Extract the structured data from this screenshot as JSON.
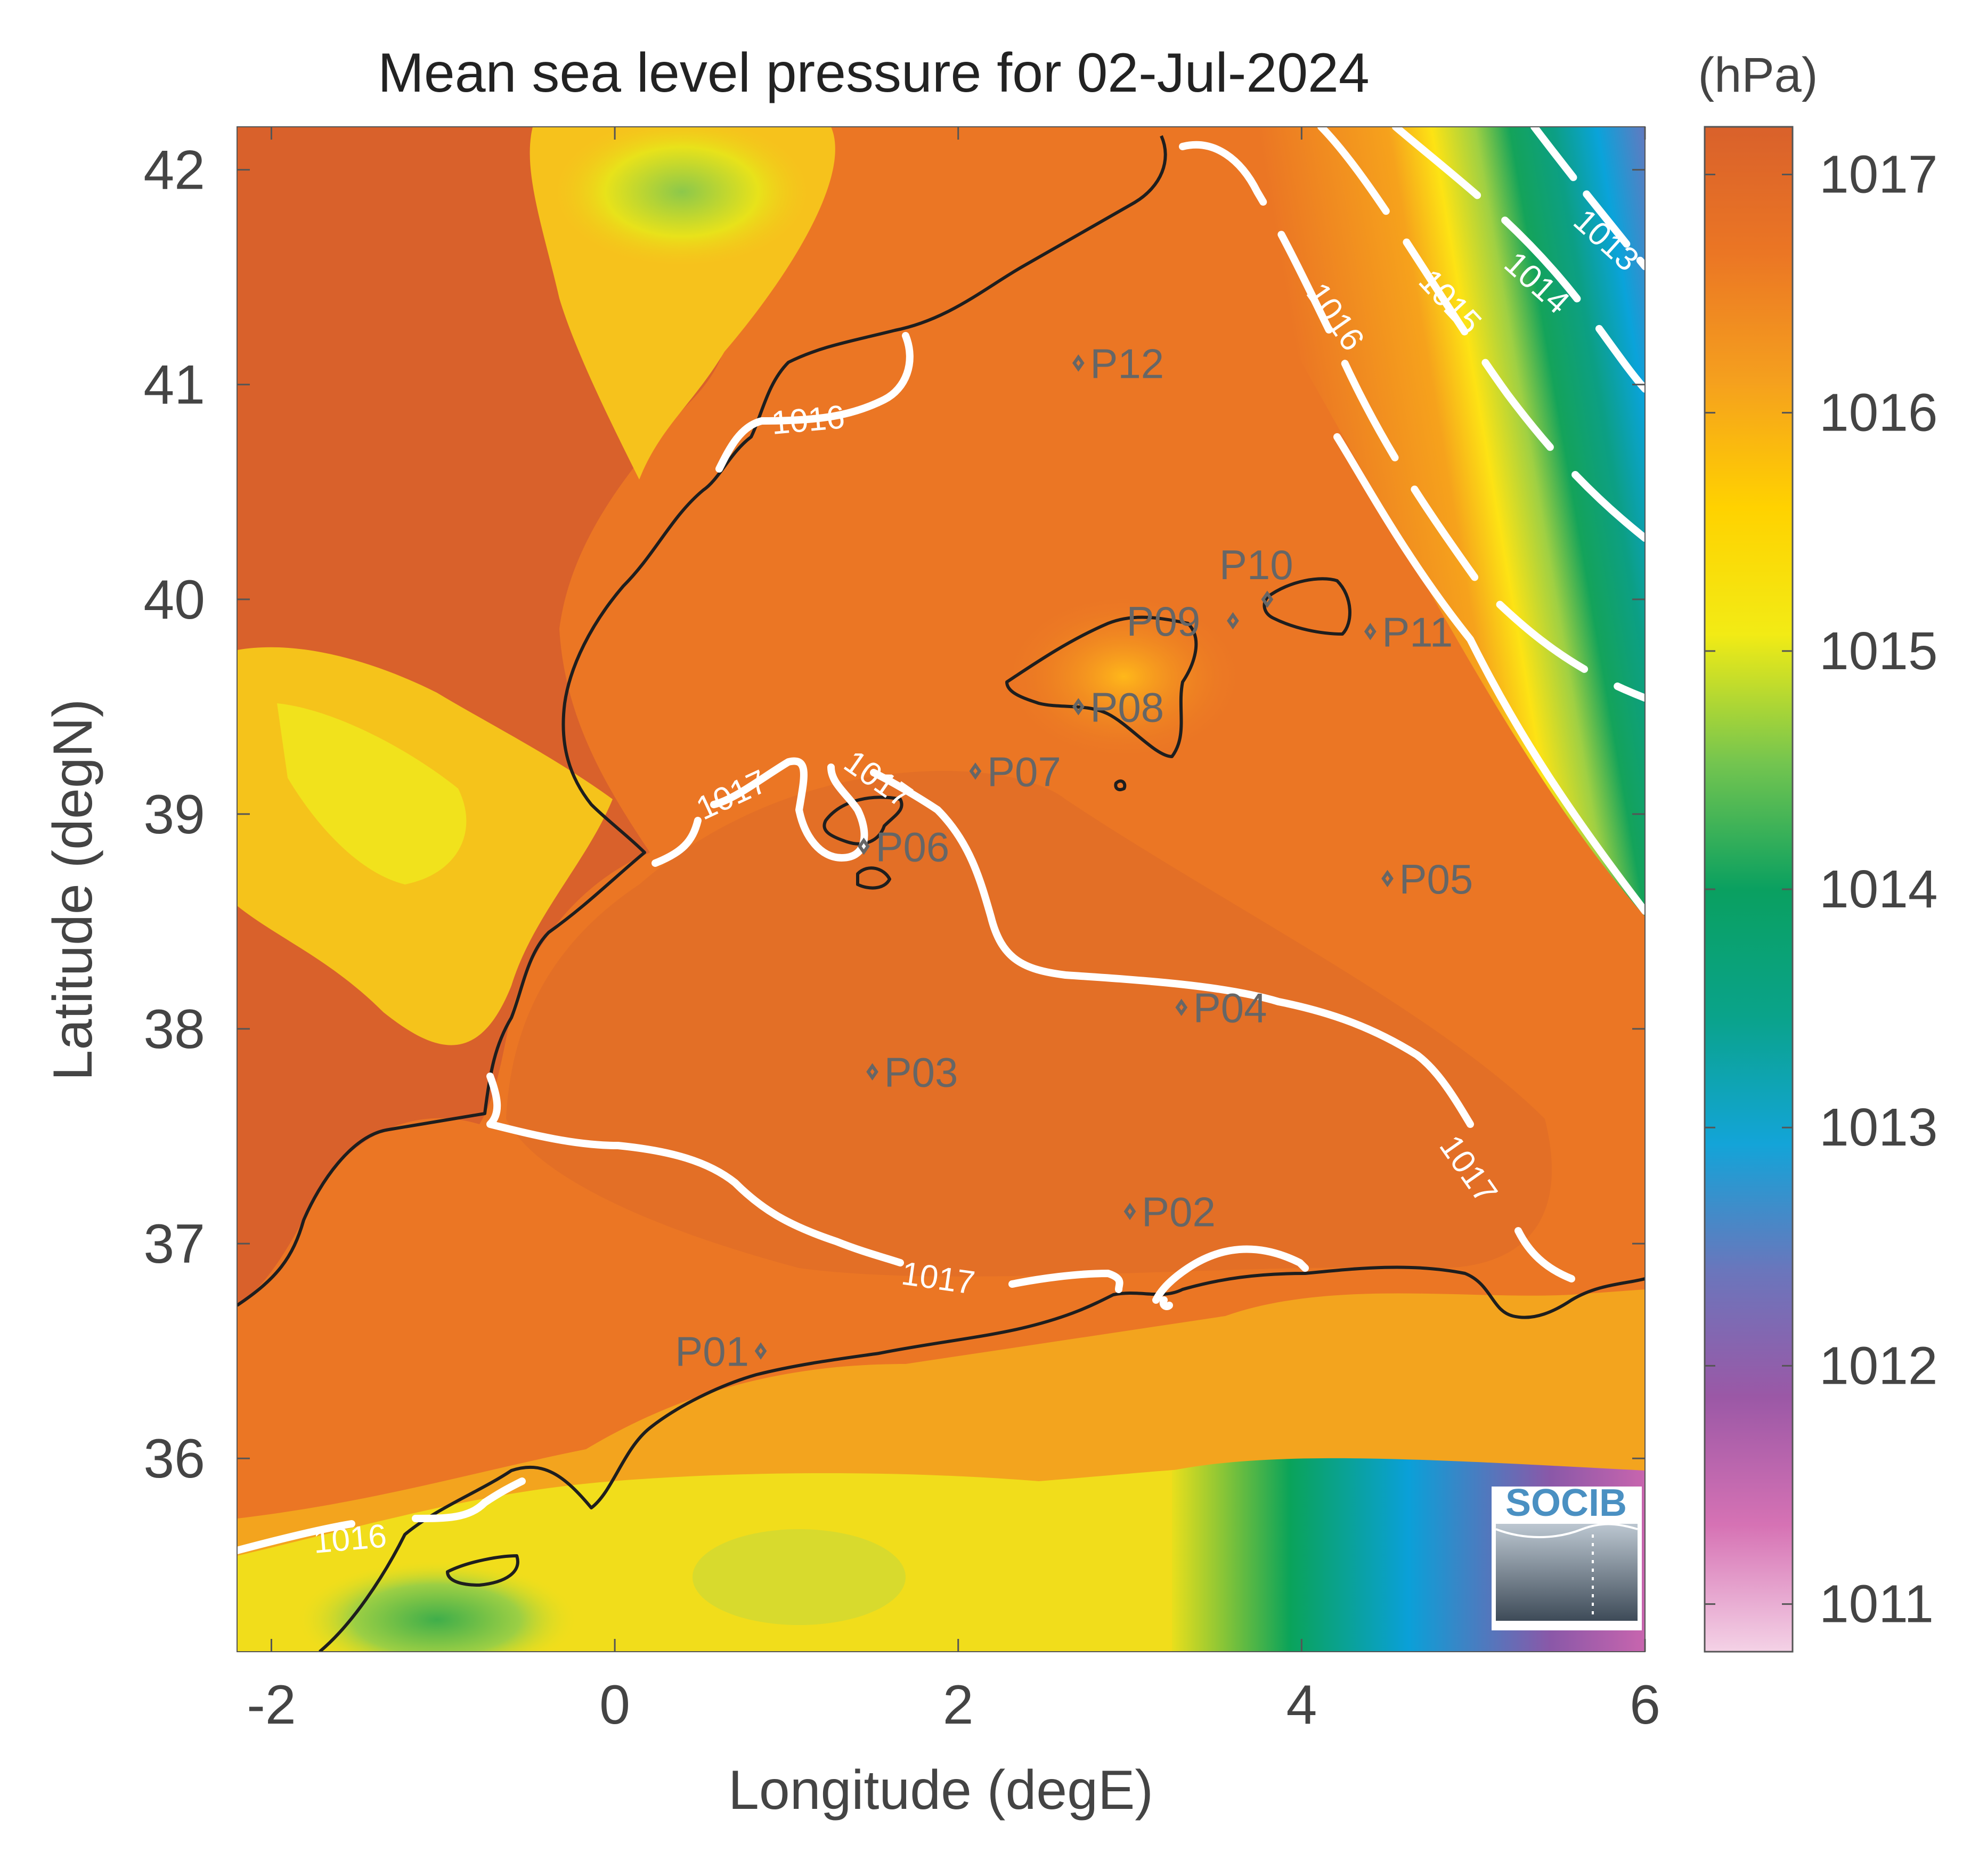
{
  "title": "Mean sea level pressure for 02-Jul-2024",
  "colorbar": {
    "unit": "(hPa)",
    "ticks": [
      "1017",
      "1016",
      "1015",
      "1014",
      "1013",
      "1012",
      "1011"
    ],
    "range": [
      1010.8,
      1017.2
    ],
    "colormap_hex": [
      "#f4d2e6",
      "#d672b4",
      "#9b58a6",
      "#6a76bc",
      "#13a4d8",
      "#0aa38a",
      "#0aa060",
      "#74c54f",
      "#f2eb15",
      "#ffd200",
      "#f5a01e",
      "#eb7624",
      "#d9612b"
    ]
  },
  "chart_data": {
    "type": "heatmap",
    "variable": "Mean sea level pressure",
    "date": "02-Jul-2024",
    "units": "hPa",
    "xlabel": "Longitude (degE)",
    "ylabel": "Latitude (degN)",
    "xlim": [
      -2.2,
      6
    ],
    "ylim": [
      35.1,
      42.2
    ],
    "xticks": [
      -2,
      0,
      2,
      4,
      6
    ],
    "yticks": [
      36,
      37,
      38,
      39,
      40,
      41,
      42
    ],
    "contour_labels": [
      "1013",
      "1014",
      "1015",
      "1016",
      "1017"
    ],
    "stations": [
      {
        "name": "P01",
        "lon": 0.85,
        "lat": 36.5
      },
      {
        "name": "P02",
        "lon": 3.0,
        "lat": 37.15
      },
      {
        "name": "P03",
        "lon": 1.5,
        "lat": 37.8
      },
      {
        "name": "P04",
        "lon": 3.3,
        "lat": 38.1
      },
      {
        "name": "P05",
        "lon": 4.5,
        "lat": 38.7
      },
      {
        "name": "P06",
        "lon": 1.45,
        "lat": 38.85
      },
      {
        "name": "P07",
        "lon": 2.1,
        "lat": 39.2
      },
      {
        "name": "P08",
        "lon": 2.7,
        "lat": 39.5
      },
      {
        "name": "P09",
        "lon": 3.6,
        "lat": 39.9
      },
      {
        "name": "P10",
        "lon": 3.8,
        "lat": 40.0
      },
      {
        "name": "P11",
        "lon": 4.4,
        "lat": 39.85
      },
      {
        "name": "P12",
        "lon": 2.7,
        "lat": 41.1
      }
    ],
    "logo": "SOCIB"
  }
}
